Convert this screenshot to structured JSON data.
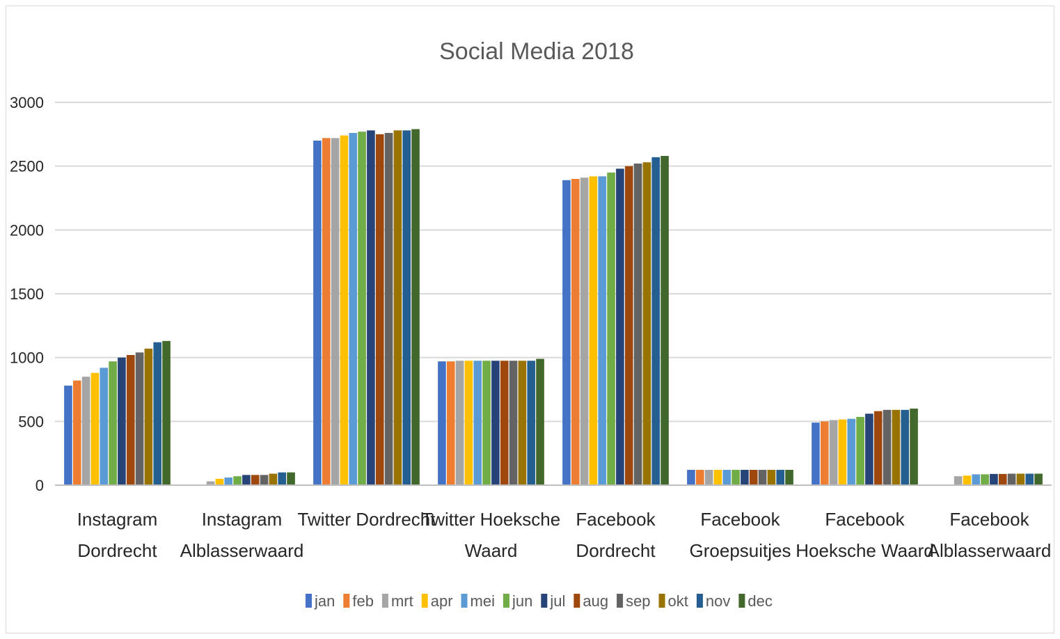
{
  "chart_data": {
    "type": "bar",
    "title": "Social Media 2018",
    "xlabel": "",
    "ylabel": "",
    "ylim": [
      0,
      3000
    ],
    "yticks": [
      "0",
      "500",
      "1000",
      "1500",
      "2000",
      "2500",
      "3000"
    ],
    "grid": true,
    "legend_position": "bottom",
    "categories": [
      [
        "Instagram",
        "Dordrecht"
      ],
      [
        "Instagram",
        "Alblasserwaard"
      ],
      [
        "Twitter Dordrecht"
      ],
      [
        "Twitter Hoeksche",
        "Waard"
      ],
      [
        "Facebook",
        "Dordrecht"
      ],
      [
        "Facebook",
        "Groepsuitjes"
      ],
      [
        "Facebook",
        "Hoeksche Waard"
      ],
      [
        "Facebook",
        "Alblasserwaard"
      ]
    ],
    "series": [
      {
        "name": "jan",
        "color": "#4472c4",
        "values": [
          780,
          0,
          2700,
          970,
          2390,
          120,
          490,
          0
        ]
      },
      {
        "name": "feb",
        "color": "#ed7d31",
        "values": [
          820,
          0,
          2720,
          970,
          2400,
          120,
          500,
          0
        ]
      },
      {
        "name": "mrt",
        "color": "#a5a5a5",
        "values": [
          850,
          30,
          2720,
          975,
          2410,
          120,
          510,
          70
        ]
      },
      {
        "name": "apr",
        "color": "#ffc000",
        "values": [
          880,
          50,
          2740,
          975,
          2420,
          120,
          515,
          75
        ]
      },
      {
        "name": "mei",
        "color": "#5b9bd5",
        "values": [
          920,
          60,
          2760,
          975,
          2420,
          120,
          520,
          85
        ]
      },
      {
        "name": "jun",
        "color": "#70ad47",
        "values": [
          970,
          70,
          2770,
          975,
          2450,
          120,
          535,
          85
        ]
      },
      {
        "name": "jul",
        "color": "#264478",
        "values": [
          1000,
          80,
          2780,
          975,
          2480,
          120,
          560,
          88
        ]
      },
      {
        "name": "aug",
        "color": "#9e480e",
        "values": [
          1020,
          80,
          2750,
          975,
          2500,
          120,
          580,
          88
        ]
      },
      {
        "name": "sep",
        "color": "#636363",
        "values": [
          1040,
          80,
          2760,
          975,
          2520,
          120,
          590,
          90
        ]
      },
      {
        "name": "okt",
        "color": "#997300",
        "values": [
          1070,
          90,
          2780,
          975,
          2530,
          120,
          590,
          90
        ]
      },
      {
        "name": "nov",
        "color": "#255e91",
        "values": [
          1120,
          100,
          2780,
          975,
          2570,
          120,
          590,
          90
        ]
      },
      {
        "name": "dec",
        "color": "#43682b",
        "values": [
          1130,
          100,
          2790,
          990,
          2580,
          120,
          600,
          90
        ]
      }
    ]
  }
}
